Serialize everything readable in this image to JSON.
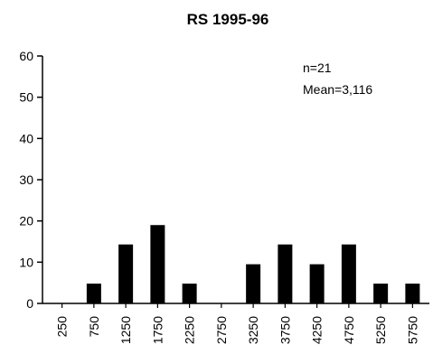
{
  "chart_data": {
    "type": "bar",
    "title": "RS  1995-96",
    "xlabel": "",
    "ylabel": "",
    "categories": [
      "250",
      "750",
      "1250",
      "1750",
      "2250",
      "2750",
      "3250",
      "3750",
      "4250",
      "4750",
      "5250",
      "5750"
    ],
    "values": [
      0,
      4.8,
      14.3,
      19,
      4.8,
      0,
      9.5,
      14.3,
      9.5,
      14.3,
      4.8,
      4.8
    ],
    "ylim": [
      0,
      60
    ],
    "yticks": [
      "0",
      "10",
      "20",
      "30",
      "40",
      "50",
      "60"
    ],
    "grid": false,
    "bar_color": "#000000",
    "annotations": [
      "n=21",
      "Mean=3,116"
    ]
  }
}
